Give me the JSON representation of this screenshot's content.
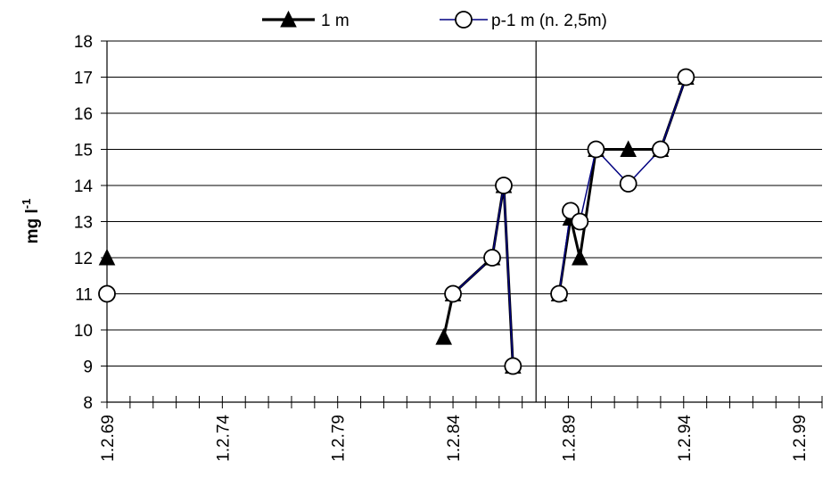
{
  "chart_data": {
    "type": "line",
    "title": "",
    "ylabel": "mg l",
    "ylabel_superscript": "-1",
    "xlabel": "",
    "ylim": [
      8,
      18
    ],
    "yticks": [
      "8",
      "9",
      "10",
      "11",
      "12",
      "13",
      "14",
      "15",
      "16",
      "17",
      "18"
    ],
    "xlim": [
      1969,
      2000
    ],
    "xticks": [
      {
        "value": 1969,
        "label": "1.2.69"
      },
      {
        "value": 1974,
        "label": "1.2.74"
      },
      {
        "value": 1979,
        "label": "1.2.79"
      },
      {
        "value": 1984,
        "label": "1.2.84"
      },
      {
        "value": 1989,
        "label": "1.2.89"
      },
      {
        "value": 1994,
        "label": "1.2.94"
      },
      {
        "value": 1999,
        "label": "1.2.99"
      }
    ],
    "grid": true,
    "legend_position": "top",
    "vertical_reference_x": 1987.6,
    "series": [
      {
        "name": "1 m",
        "color": "#000000",
        "marker": "filled-triangle",
        "segments": [
          [
            {
              "x": 1969.0,
              "y": 12.0
            }
          ],
          [
            {
              "x": 1983.6,
              "y": 9.8
            },
            {
              "x": 1984.0,
              "y": 11.0
            },
            {
              "x": 1985.7,
              "y": 12.0
            },
            {
              "x": 1986.2,
              "y": 14.0
            },
            {
              "x": 1986.6,
              "y": 9.0
            }
          ],
          [
            {
              "x": 1988.6,
              "y": 11.0
            },
            {
              "x": 1989.1,
              "y": 13.1
            },
            {
              "x": 1989.5,
              "y": 12.0
            },
            {
              "x": 1990.2,
              "y": 15.0
            },
            {
              "x": 1991.6,
              "y": 15.0
            },
            {
              "x": 1993.0,
              "y": 15.0
            },
            {
              "x": 1994.1,
              "y": 17.0
            }
          ]
        ]
      },
      {
        "name": "p-1 m (n. 2,5m)",
        "color": "#000080",
        "marker": "open-circle",
        "segments": [
          [
            {
              "x": 1969.0,
              "y": 11.0
            }
          ],
          [
            {
              "x": 1984.0,
              "y": 11.0
            },
            {
              "x": 1985.7,
              "y": 12.0
            },
            {
              "x": 1986.2,
              "y": 14.0
            },
            {
              "x": 1986.6,
              "y": 9.0
            }
          ],
          [
            {
              "x": 1988.6,
              "y": 11.0
            },
            {
              "x": 1989.1,
              "y": 13.3
            },
            {
              "x": 1989.5,
              "y": 13.0
            },
            {
              "x": 1990.2,
              "y": 15.0
            },
            {
              "x": 1991.6,
              "y": 14.05
            },
            {
              "x": 1993.0,
              "y": 15.0
            },
            {
              "x": 1994.1,
              "y": 17.0
            }
          ]
        ]
      }
    ]
  }
}
